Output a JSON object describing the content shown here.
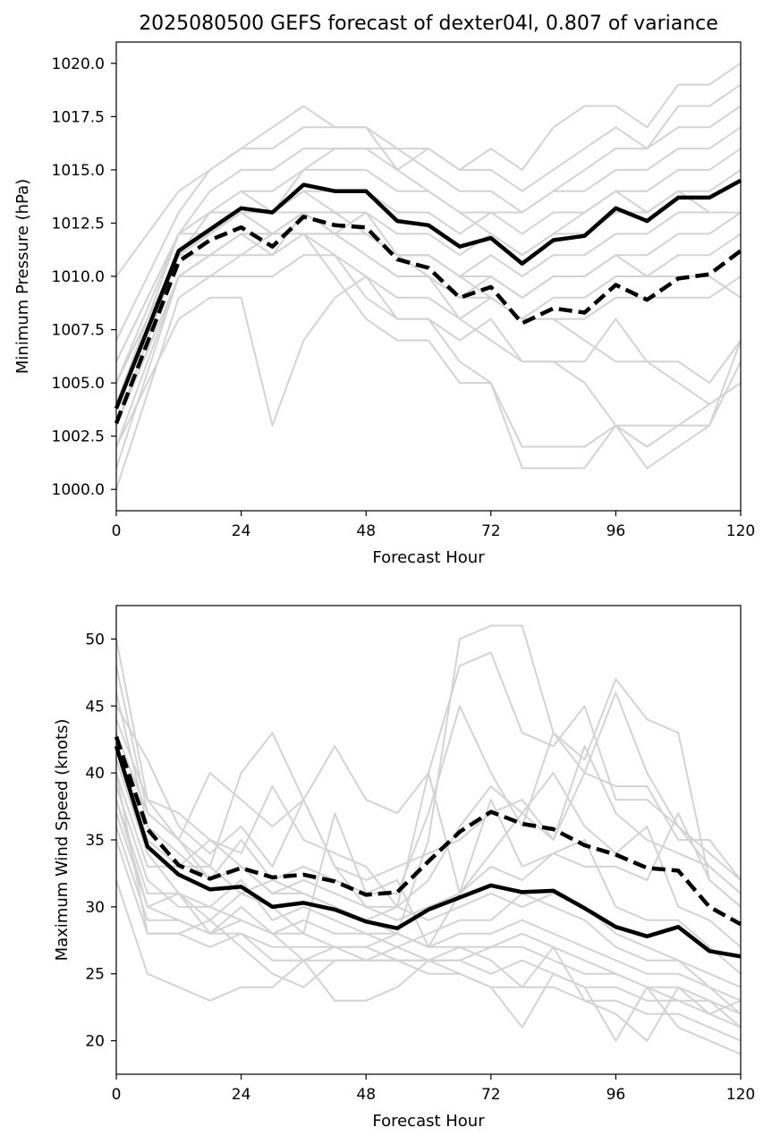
{
  "title": "2025080500 GEFS forecast of dexter04l, 0.807 of variance",
  "colors": {
    "member": "#d3d3d3",
    "highlight": "#000000"
  },
  "chart_data": [
    {
      "type": "line",
      "xlabel": "Forecast Hour",
      "ylabel": "Minimum Pressure (hPa)",
      "xlim": [
        0,
        120
      ],
      "ylim": [
        999,
        1021
      ],
      "xticks": [
        0,
        24,
        48,
        72,
        96,
        120
      ],
      "yticks": [
        1000.0,
        1002.5,
        1005.0,
        1007.5,
        1010.0,
        1012.5,
        1015.0,
        1017.5,
        1020.0
      ],
      "x": [
        0,
        12,
        18,
        24,
        30,
        36,
        42,
        48,
        54,
        60,
        66,
        72,
        78,
        84,
        90,
        96,
        102,
        108,
        114,
        120
      ],
      "members": [
        [
          1010,
          1014,
          1015,
          1016,
          1017,
          1018,
          1017,
          1017,
          1016,
          1016,
          1015,
          1016,
          1015,
          1017,
          1018,
          1018,
          1017,
          1019,
          1019,
          1020
        ],
        [
          1007,
          1013,
          1015,
          1016,
          1016,
          1017,
          1017,
          1017,
          1015,
          1016,
          1015,
          1015,
          1014,
          1015,
          1016,
          1017,
          1016,
          1018,
          1018,
          1019
        ],
        [
          1006,
          1012,
          1014,
          1015,
          1015,
          1016,
          1016,
          1016,
          1016,
          1015,
          1014,
          1014,
          1013,
          1014,
          1015,
          1016,
          1016,
          1017,
          1017,
          1018
        ],
        [
          1005,
          1012,
          1013,
          1014,
          1014,
          1015,
          1015,
          1015,
          1014,
          1014,
          1013,
          1013,
          1013,
          1014,
          1014,
          1015,
          1015,
          1016,
          1016,
          1017
        ],
        [
          1004,
          1011,
          1012,
          1013,
          1013,
          1014,
          1014,
          1014,
          1013,
          1013,
          1012,
          1013,
          1012,
          1013,
          1013,
          1014,
          1014,
          1015,
          1015,
          1016
        ],
        [
          1003,
          1011,
          1012,
          1013,
          1012,
          1013,
          1013,
          1013,
          1012,
          1012,
          1011,
          1012,
          1011,
          1012,
          1012,
          1013,
          1013,
          1014,
          1014,
          1015
        ],
        [
          1002,
          1010,
          1011,
          1012,
          1012,
          1012,
          1012,
          1012,
          1011,
          1011,
          1010,
          1011,
          1010,
          1011,
          1011,
          1012,
          1012,
          1013,
          1013,
          1013
        ],
        [
          1001,
          1010,
          1010,
          1011,
          1011,
          1012,
          1012,
          1011,
          1010,
          1010,
          1009,
          1010,
          1009,
          1010,
          1010,
          1011,
          1011,
          1012,
          1012,
          1013
        ],
        [
          1000,
          1009,
          1010,
          1010,
          1010,
          1011,
          1011,
          1010,
          1009,
          1009,
          1008,
          1009,
          1008,
          1009,
          1009,
          1010,
          1010,
          1011,
          1011,
          1012
        ],
        [
          1005,
          1011,
          1013,
          1014,
          1013,
          1015,
          1016,
          1016,
          1015,
          1014,
          1013,
          1012,
          1011,
          1012,
          1013,
          1014,
          1013,
          1014,
          1013,
          1013
        ],
        [
          1004,
          1012,
          1012,
          1013,
          1013,
          1013,
          1012,
          1013,
          1011,
          1011,
          1010,
          1010,
          1009,
          1010,
          1010,
          1011,
          1010,
          1010,
          1010,
          1009
        ],
        [
          1003,
          1010,
          1011,
          1012,
          1011,
          1013,
          1013,
          1012,
          1011,
          1010,
          1009,
          1009,
          1008,
          1008,
          1008,
          1009,
          1009,
          1009,
          1009,
          1010
        ],
        [
          1002,
          1008,
          1009,
          1009,
          1003,
          1007,
          1009,
          1010,
          1008,
          1008,
          1007,
          1008,
          1006,
          1006,
          1006,
          1008,
          1006,
          1006,
          1005,
          1007
        ],
        [
          1003,
          1010,
          1011,
          1011,
          1012,
          1012,
          1010,
          1008,
          1007,
          1007,
          1005,
          1005,
          1001,
          1001,
          1001,
          1003,
          1001,
          1002,
          1003,
          1006
        ],
        [
          1004,
          1011,
          1011,
          1012,
          1012,
          1012,
          1011,
          1009,
          1008,
          1008,
          1006,
          1005,
          1002,
          1002,
          1002,
          1003,
          1002,
          1003,
          1004,
          1005
        ],
        [
          1006,
          1012,
          1013,
          1013,
          1012,
          1013,
          1012,
          1011,
          1010,
          1010,
          1008,
          1007,
          1006,
          1006,
          1005,
          1003,
          1003,
          1003,
          1003,
          1007
        ],
        [
          1005,
          1011,
          1012,
          1013,
          1013,
          1014,
          1013,
          1012,
          1011,
          1011,
          1010,
          1009,
          1008,
          1008,
          1007,
          1006,
          1006,
          1005,
          1004,
          1005
        ]
      ],
      "series": [
        {
          "values": [
            1003.8,
            1011.2,
            1012.2,
            1013.2,
            1013.0,
            1014.3,
            1014.0,
            1014.0,
            1012.6,
            1012.4,
            1011.4,
            1011.8,
            1010.6,
            1011.7,
            1011.9,
            1013.2,
            1012.6,
            1013.7,
            1013.7,
            1014.5
          ],
          "style": "solid"
        },
        {
          "values": [
            1003.1,
            1010.7,
            1011.7,
            1012.3,
            1011.4,
            1012.8,
            1012.4,
            1012.3,
            1010.8,
            1010.4,
            1009.0,
            1009.5,
            1007.8,
            1008.5,
            1008.3,
            1009.6,
            1008.9,
            1009.9,
            1010.1,
            1011.2
          ],
          "style": "dashed"
        }
      ]
    },
    {
      "type": "line",
      "xlabel": "Forecast Hour",
      "ylabel": "Maximum Wind Speed (knots)",
      "xlim": [
        0,
        120
      ],
      "ylim": [
        17.5,
        52.5
      ],
      "xticks": [
        0,
        24,
        48,
        72,
        96,
        120
      ],
      "yticks": [
        20,
        25,
        30,
        35,
        40,
        45,
        50
      ],
      "x": [
        0,
        6,
        12,
        18,
        24,
        30,
        36,
        42,
        48,
        54,
        60,
        66,
        72,
        78,
        84,
        90,
        96,
        102,
        108,
        114,
        120
      ],
      "members": [
        [
          50,
          38,
          35,
          33,
          31,
          32,
          31,
          30,
          29,
          28,
          35,
          50,
          51,
          51,
          43,
          40,
          39,
          39,
          35,
          35,
          32
        ],
        [
          48,
          37,
          35,
          32,
          33,
          31,
          32,
          31,
          30,
          30,
          40,
          48,
          49,
          43,
          42,
          45,
          38,
          38,
          36,
          34,
          32
        ],
        [
          46,
          36,
          34,
          32,
          35,
          32,
          33,
          32,
          31,
          31,
          37,
          45,
          40,
          36,
          43,
          41,
          47,
          44,
          43,
          32,
          30
        ],
        [
          45,
          41,
          36,
          34,
          36,
          33,
          38,
          33,
          32,
          33,
          34,
          35,
          37,
          38,
          35,
          40,
          46,
          40,
          36,
          33,
          31
        ],
        [
          44,
          38,
          37,
          35,
          34,
          39,
          35,
          34,
          33,
          30,
          32,
          36,
          39,
          37,
          35,
          42,
          37,
          35,
          34,
          33,
          31
        ],
        [
          43,
          37,
          35,
          40,
          38,
          36,
          38,
          42,
          38,
          37,
          40,
          31,
          38,
          33,
          34,
          33,
          33,
          32,
          37,
          32,
          30
        ],
        [
          42,
          35,
          33,
          33,
          40,
          43,
          38,
          33,
          30,
          29,
          30,
          31,
          34,
          37,
          40,
          36,
          34,
          36,
          30,
          29,
          27
        ],
        [
          41,
          34,
          31,
          29,
          31,
          30,
          28,
          37,
          31,
          32,
          27,
          31,
          33,
          32,
          34,
          35,
          30,
          29,
          29,
          27,
          25
        ],
        [
          40,
          33,
          33,
          35,
          33,
          31,
          31,
          30,
          29,
          30,
          29,
          30,
          31,
          30,
          31,
          30,
          28,
          27,
          26,
          25,
          24
        ],
        [
          39,
          32,
          30,
          30,
          32,
          29,
          30,
          29,
          28,
          27,
          28,
          29,
          29,
          31,
          30,
          29,
          27,
          26,
          26,
          24,
          23
        ],
        [
          38,
          31,
          31,
          28,
          30,
          28,
          29,
          28,
          28,
          28,
          27,
          28,
          28,
          29,
          28,
          27,
          26,
          25,
          25,
          24,
          22
        ],
        [
          37,
          30,
          29,
          28,
          29,
          28,
          28,
          27,
          27,
          28,
          27,
          27,
          27,
          28,
          27,
          26,
          25,
          24,
          24,
          23,
          22
        ],
        [
          36,
          29,
          29,
          28,
          28,
          27,
          27,
          27,
          26,
          27,
          26,
          26,
          27,
          27,
          26,
          25,
          25,
          24,
          23,
          23,
          21
        ],
        [
          35,
          28,
          28,
          27,
          28,
          26,
          26,
          26,
          26,
          26,
          26,
          26,
          25,
          26,
          25,
          24,
          24,
          23,
          23,
          22,
          21
        ],
        [
          32,
          25,
          24,
          23,
          24,
          24,
          26,
          23,
          23,
          24,
          26,
          25,
          24,
          21,
          25,
          24,
          20,
          24,
          21,
          20,
          19
        ],
        [
          40,
          28,
          28,
          29,
          27,
          25,
          24,
          26,
          26,
          26,
          25,
          25,
          24,
          24,
          24,
          23,
          22,
          20,
          24,
          22,
          23
        ],
        [
          38,
          30,
          31,
          30,
          29,
          28,
          26,
          27,
          27,
          26,
          26,
          27,
          26,
          24,
          27,
          23,
          23,
          22,
          22,
          21,
          20
        ]
      ],
      "series": [
        {
          "values": [
            42.0,
            34.5,
            32.4,
            31.3,
            31.5,
            30.0,
            30.3,
            29.8,
            28.9,
            28.4,
            29.8,
            30.7,
            31.6,
            31.1,
            31.2,
            29.9,
            28.5,
            27.8,
            28.5,
            26.7,
            26.3
          ],
          "style": "solid"
        },
        {
          "values": [
            42.7,
            35.8,
            33.1,
            32.1,
            32.9,
            32.2,
            32.4,
            31.9,
            30.9,
            31.1,
            33.4,
            35.6,
            37.1,
            36.2,
            35.8,
            34.6,
            33.9,
            32.9,
            32.7,
            30.0,
            28.7
          ],
          "style": "dashed"
        }
      ]
    }
  ]
}
